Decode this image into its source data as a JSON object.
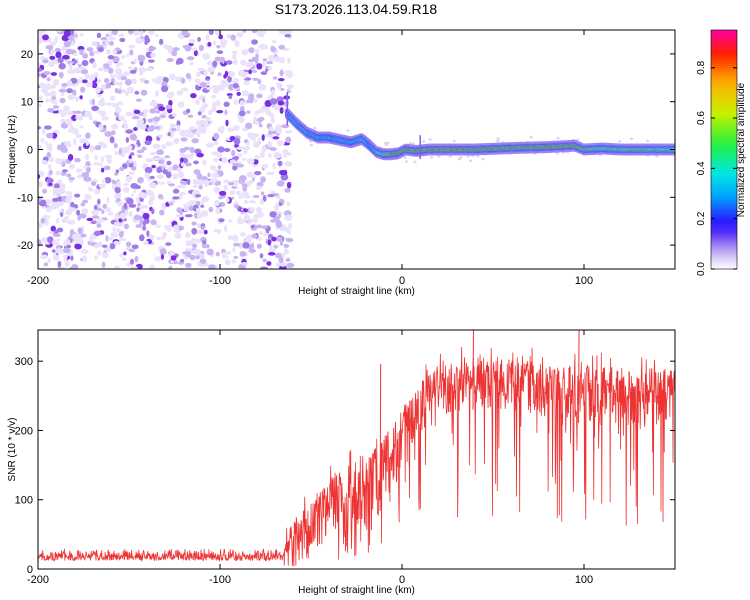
{
  "title": "S173.2026.113.04.59.R18",
  "chart_data": [
    {
      "type": "heatmap",
      "title": "S173.2026.113.04.59.R18",
      "xlabel": "Height of straight line (km)",
      "ylabel": "Frequency (Hz)",
      "xlim": [
        -200,
        150
      ],
      "ylim": [
        -25,
        25
      ],
      "xticks": [
        -200,
        -100,
        0,
        100
      ],
      "yticks": [
        -20,
        -10,
        0,
        10,
        20
      ],
      "colorbar": {
        "label": "Normalized spectral amplitude",
        "range": [
          0.0,
          0.95
        ],
        "ticks": [
          0.0,
          0.2,
          0.4,
          0.6,
          0.8
        ],
        "tick_labels": [
          "0.0",
          "0.2",
          "0.4",
          "0.6",
          "0.8"
        ]
      },
      "noise_region": {
        "x_from": -200,
        "x_to": -63
      },
      "ridge": {
        "x": [
          -63,
          -58,
          -52,
          -46,
          -40,
          -34,
          -28,
          -22,
          -18,
          -14,
          -10,
          -6,
          -2,
          2,
          8,
          15,
          25,
          40,
          60,
          80,
          95,
          100,
          110,
          120,
          130,
          140,
          150
        ],
        "freq": [
          7.5,
          5.5,
          3.5,
          2.5,
          2.5,
          2.0,
          1.5,
          2.2,
          1.0,
          -0.5,
          -1.0,
          -1.0,
          -0.8,
          0.0,
          -0.3,
          0.0,
          0.0,
          0.0,
          0.3,
          0.5,
          0.8,
          0.0,
          0.2,
          0.0,
          0.0,
          0.0,
          0.0
        ],
        "amp": [
          0.55,
          0.55,
          0.55,
          0.5,
          0.5,
          0.55,
          0.5,
          0.6,
          0.5,
          0.6,
          0.8,
          0.9,
          0.95,
          0.95,
          0.9,
          0.95,
          0.95,
          0.92,
          0.9,
          0.95,
          0.95,
          0.85,
          0.7,
          0.75,
          0.8,
          0.75,
          0.7
        ]
      }
    },
    {
      "type": "line",
      "xlabel": "Height of straight line (km)",
      "ylabel": "SNR (10 * v/v)",
      "xlim": [
        -200,
        150
      ],
      "ylim": [
        0,
        345
      ],
      "xticks": [
        -200,
        -100,
        0,
        100
      ],
      "yticks": [
        0,
        100,
        200,
        300
      ],
      "color": "#ee3333",
      "envelope": {
        "x": [
          -200,
          -65,
          -60,
          -50,
          -40,
          -30,
          -20,
          -10,
          0,
          10,
          20,
          30,
          50,
          70,
          100,
          130,
          150
        ],
        "floor": [
          12,
          12,
          12,
          20,
          30,
          45,
          60,
          90,
          130,
          180,
          210,
          230,
          230,
          220,
          210,
          200,
          200
        ],
        "ceil": [
          30,
          30,
          70,
          100,
          130,
          150,
          160,
          190,
          230,
          270,
          290,
          300,
          310,
          300,
          295,
          290,
          290
        ]
      },
      "spikes": [
        {
          "x": -12,
          "y": 296
        },
        {
          "x": 4,
          "y": 243
        },
        {
          "x": 39,
          "y": 345
        },
        {
          "x": 97,
          "y": 345
        }
      ]
    }
  ]
}
